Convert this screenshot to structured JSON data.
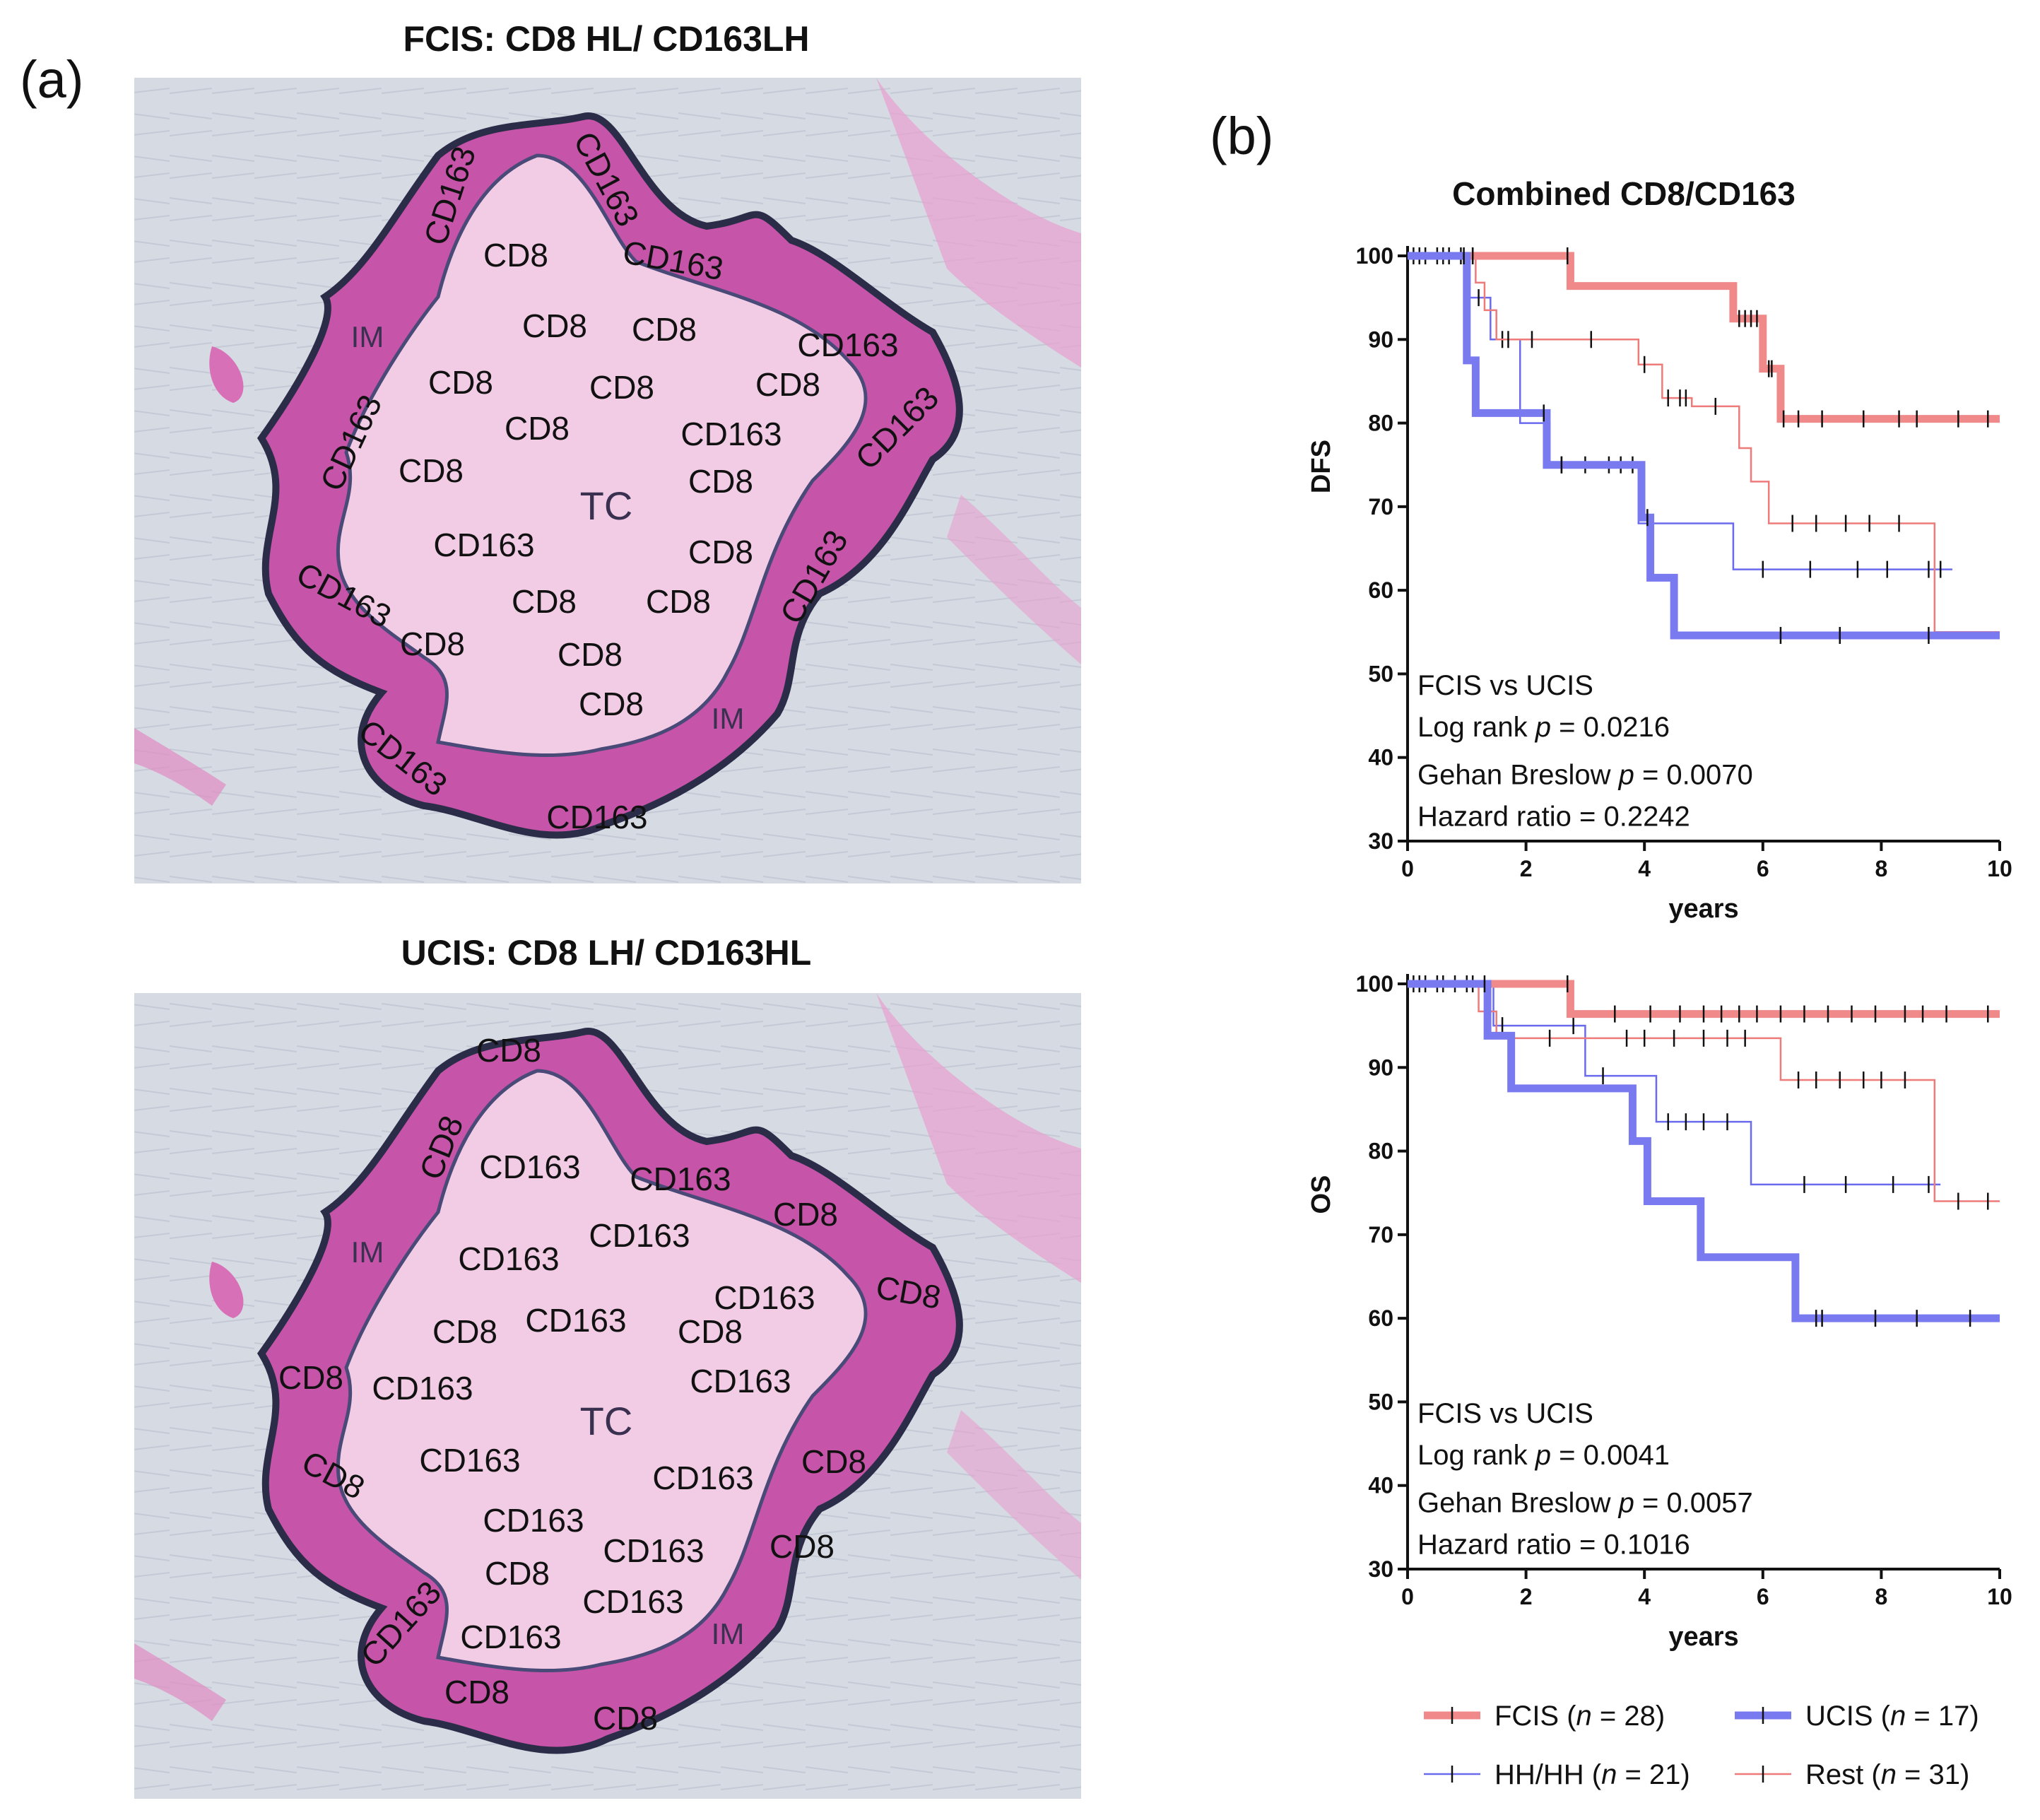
{
  "panel_a": {
    "letter": "(a)",
    "top": {
      "title": "FCIS: CD8 HL/ CD163LH",
      "center_label": "TC",
      "labels": [
        {
          "t": "CD163",
          "kind": "rim"
        },
        {
          "t": "CD163",
          "kind": "rim"
        },
        {
          "t": "CD163",
          "kind": "rim"
        },
        {
          "t": "CD8",
          "kind": "rim"
        },
        {
          "t": "CD163",
          "kind": "rim"
        },
        {
          "t": "CD163",
          "kind": "rim"
        },
        {
          "t": "CD163",
          "kind": "rim"
        },
        {
          "t": "CD163",
          "kind": "rim"
        },
        {
          "t": "CD163",
          "kind": "rim"
        },
        {
          "t": "CD163",
          "kind": "rim"
        },
        {
          "t": "CD163",
          "kind": "rim"
        },
        {
          "t": "CD8",
          "kind": "rim"
        },
        {
          "t": "IM",
          "kind": "im"
        },
        {
          "t": "IM",
          "kind": "im"
        },
        {
          "t": "CD8",
          "kind": "core"
        },
        {
          "t": "CD8",
          "kind": "core"
        },
        {
          "t": "CD8",
          "kind": "core"
        },
        {
          "t": "CD8",
          "kind": "core"
        },
        {
          "t": "CD8",
          "kind": "core"
        },
        {
          "t": "CD8",
          "kind": "core"
        },
        {
          "t": "CD8",
          "kind": "core"
        },
        {
          "t": "CD163",
          "kind": "core"
        },
        {
          "t": "CD8",
          "kind": "core"
        },
        {
          "t": "CD8",
          "kind": "core"
        },
        {
          "t": "CD163",
          "kind": "core"
        },
        {
          "t": "CD8",
          "kind": "core"
        },
        {
          "t": "CD8",
          "kind": "core"
        },
        {
          "t": "CD8",
          "kind": "core"
        },
        {
          "t": "CD8",
          "kind": "core"
        },
        {
          "t": "CD8",
          "kind": "core"
        }
      ]
    },
    "bottom": {
      "title": "UCIS: CD8 LH/ CD163HL",
      "center_label": "TC",
      "labels": [
        {
          "t": "CD8",
          "kind": "rim"
        },
        {
          "t": "CD8",
          "kind": "rim"
        },
        {
          "t": "CD163",
          "kind": "rim"
        },
        {
          "t": "CD8",
          "kind": "rim"
        },
        {
          "t": "CD8",
          "kind": "rim"
        },
        {
          "t": "CD8",
          "kind": "rim"
        },
        {
          "t": "CD8",
          "kind": "rim"
        },
        {
          "t": "CD8",
          "kind": "rim"
        },
        {
          "t": "CD8",
          "kind": "rim"
        },
        {
          "t": "CD163",
          "kind": "rim"
        },
        {
          "t": "CD8",
          "kind": "rim"
        },
        {
          "t": "CD8",
          "kind": "rim"
        },
        {
          "t": "IM",
          "kind": "im"
        },
        {
          "t": "IM",
          "kind": "im"
        },
        {
          "t": "CD163",
          "kind": "core"
        },
        {
          "t": "CD163",
          "kind": "core"
        },
        {
          "t": "CD163",
          "kind": "core"
        },
        {
          "t": "CD163",
          "kind": "core"
        },
        {
          "t": "CD8",
          "kind": "core"
        },
        {
          "t": "CD163",
          "kind": "core"
        },
        {
          "t": "CD8",
          "kind": "core"
        },
        {
          "t": "CD163",
          "kind": "core"
        },
        {
          "t": "CD163",
          "kind": "core"
        },
        {
          "t": "CD163",
          "kind": "core"
        },
        {
          "t": "CD163",
          "kind": "core"
        },
        {
          "t": "CD163",
          "kind": "core"
        },
        {
          "t": "CD163",
          "kind": "core"
        },
        {
          "t": "CD8",
          "kind": "core"
        },
        {
          "t": "CD163",
          "kind": "core"
        },
        {
          "t": "CD163",
          "kind": "core"
        }
      ]
    }
  },
  "panel_b": {
    "letter": "(b)",
    "title": "Combined CD8/CD163"
  },
  "colors": {
    "FCIS": "#f08a8a",
    "UCIS": "#7a7af0",
    "HH": "#6a6aee",
    "Rest": "#ee7a7a",
    "tissue_outer": "#c64aa4",
    "tissue_inner": "#f3c6e3",
    "background": "#d7dbe3",
    "outline": "#2e3050",
    "censor": "#111111"
  },
  "chart_data": [
    {
      "type": "line",
      "subtype": "kaplan-meier",
      "title": "Combined CD8/CD163",
      "xlabel": "years",
      "ylabel": "DFS",
      "xlim": [
        0,
        10
      ],
      "ylim": [
        30,
        100
      ],
      "xticks": [
        0,
        2,
        4,
        6,
        8,
        10
      ],
      "yticks": [
        30,
        40,
        50,
        60,
        70,
        80,
        90,
        100
      ],
      "stats": [
        "FCIS vs UCIS",
        "Log rank",
        "= 0.0216",
        "Gehan Breslow",
        "= 0.0070",
        "Hazard ratio = 0.2242"
      ],
      "series": [
        {
          "name": "HH/HH",
          "color_key": "HH",
          "width": 2.5,
          "steps": [
            [
              0,
              100
            ],
            [
              1.05,
              95
            ],
            [
              1.4,
              90
            ],
            [
              1.9,
              80
            ],
            [
              2.4,
              75
            ],
            [
              3.9,
              75
            ],
            [
              3.9,
              68
            ],
            [
              5.5,
              68
            ],
            [
              5.5,
              62.5
            ],
            [
              9.2,
              62.5
            ]
          ],
          "censors": [
            0.1,
            0.3,
            0.5,
            0.7,
            1.2,
            1.6,
            2.6,
            3.0,
            3.4,
            3.6,
            3.8,
            6.0,
            6.8,
            7.6,
            8.1,
            8.8,
            9.0
          ]
        },
        {
          "name": "Rest",
          "color_key": "Rest",
          "width": 2.5,
          "steps": [
            [
              0,
              100
            ],
            [
              1.15,
              96.8
            ],
            [
              1.3,
              93.5
            ],
            [
              1.5,
              90
            ],
            [
              3.9,
              90
            ],
            [
              3.9,
              87
            ],
            [
              4.3,
              83
            ],
            [
              4.8,
              83
            ],
            [
              4.8,
              82
            ],
            [
              5.6,
              82
            ],
            [
              5.6,
              77
            ],
            [
              5.8,
              73
            ],
            [
              6.1,
              73
            ],
            [
              6.1,
              68
            ],
            [
              8.9,
              68
            ],
            [
              8.9,
              55
            ],
            [
              10,
              55
            ]
          ],
          "censors": [
            0.2,
            0.6,
            0.9,
            1.1,
            1.7,
            2.1,
            3.1,
            4.0,
            4.4,
            4.6,
            4.7,
            5.2,
            6.5,
            6.9,
            7.4,
            7.8,
            8.3
          ]
        },
        {
          "name": "FCIS",
          "color_key": "FCIS",
          "width": 11,
          "steps": [
            [
              0,
              100
            ],
            [
              2.75,
              100
            ],
            [
              2.75,
              96.4
            ],
            [
              5.5,
              96.4
            ],
            [
              5.5,
              92.5
            ],
            [
              6.0,
              92.5
            ],
            [
              6.0,
              86.5
            ],
            [
              6.3,
              86.5
            ],
            [
              6.3,
              80.5
            ],
            [
              10,
              80.5
            ]
          ],
          "censors": [
            1.1,
            2.7,
            5.6,
            5.7,
            5.8,
            5.9,
            6.1,
            6.15,
            6.35,
            6.6,
            7.0,
            7.7,
            8.3,
            8.6,
            9.3,
            9.8
          ]
        },
        {
          "name": "UCIS",
          "color_key": "UCIS",
          "width": 11,
          "steps": [
            [
              0,
              100
            ],
            [
              1.0,
              100
            ],
            [
              1.0,
              87.5
            ],
            [
              1.15,
              87.5
            ],
            [
              1.15,
              81.2
            ],
            [
              2.35,
              81.2
            ],
            [
              2.35,
              75
            ],
            [
              3.95,
              75
            ],
            [
              3.95,
              68.7
            ],
            [
              4.1,
              68.7
            ],
            [
              4.1,
              61.5
            ],
            [
              4.5,
              61.5
            ],
            [
              4.5,
              54.6
            ],
            [
              10,
              54.6
            ]
          ],
          "censors": [
            0.95,
            2.3,
            2.6,
            4.05,
            6.3,
            7.3,
            8.8
          ]
        }
      ]
    },
    {
      "type": "line",
      "subtype": "kaplan-meier",
      "xlabel": "years",
      "ylabel": "OS",
      "xlim": [
        0,
        10
      ],
      "ylim": [
        30,
        100
      ],
      "xticks": [
        0,
        2,
        4,
        6,
        8,
        10
      ],
      "yticks": [
        30,
        40,
        50,
        60,
        70,
        80,
        90,
        100
      ],
      "stats": [
        "FCIS vs UCIS",
        "Log rank",
        "= 0.0041",
        "Gehan Breslow",
        "= 0.0057",
        "Hazard ratio = 0.1016"
      ],
      "series": [
        {
          "name": "HH/HH",
          "color_key": "HH",
          "width": 2.5,
          "steps": [
            [
              0,
              100
            ],
            [
              1.45,
              95
            ],
            [
              1.9,
              95
            ],
            [
              3.0,
              89
            ],
            [
              3.5,
              89
            ],
            [
              4.2,
              83.5
            ],
            [
              5.8,
              83.5
            ],
            [
              5.8,
              76
            ],
            [
              9.0,
              76
            ]
          ],
          "censors": [
            0.1,
            0.3,
            0.5,
            0.8,
            1.6,
            2.8,
            3.3,
            4.4,
            4.7,
            5.0,
            5.4,
            6.7,
            7.4,
            8.2,
            8.8
          ]
        },
        {
          "name": "Rest",
          "color_key": "Rest",
          "width": 2.5,
          "steps": [
            [
              0,
              100
            ],
            [
              1.2,
              96.7
            ],
            [
              1.5,
              93.5
            ],
            [
              6.3,
              93.5
            ],
            [
              6.3,
              88.5
            ],
            [
              8.9,
              88.5
            ],
            [
              8.9,
              74
            ],
            [
              10,
              74
            ]
          ],
          "censors": [
            0.2,
            0.6,
            1.0,
            2.4,
            3.7,
            4.0,
            4.5,
            5.0,
            5.4,
            5.7,
            6.6,
            6.9,
            7.3,
            7.7,
            8.0,
            8.4,
            9.3,
            9.8
          ]
        },
        {
          "name": "FCIS",
          "color_key": "FCIS",
          "width": 11,
          "steps": [
            [
              0,
              100
            ],
            [
              2.75,
              100
            ],
            [
              2.75,
              96.4
            ],
            [
              10,
              96.4
            ]
          ],
          "censors": [
            1.1,
            2.7,
            3.5,
            4.1,
            4.6,
            5.0,
            5.3,
            5.6,
            5.9,
            6.3,
            6.7,
            7.1,
            7.5,
            7.9,
            8.4,
            8.7,
            9.1,
            9.8
          ]
        },
        {
          "name": "UCIS",
          "color_key": "UCIS",
          "width": 11,
          "steps": [
            [
              0,
              100
            ],
            [
              1.35,
              100
            ],
            [
              1.35,
              93.8
            ],
            [
              1.75,
              93.8
            ],
            [
              1.75,
              87.5
            ],
            [
              3.8,
              87.5
            ],
            [
              3.8,
              81.2
            ],
            [
              4.05,
              81.2
            ],
            [
              4.05,
              74
            ],
            [
              4.95,
              74
            ],
            [
              4.95,
              67.3
            ],
            [
              6.55,
              67.3
            ],
            [
              6.55,
              60
            ],
            [
              10,
              60
            ]
          ],
          "censors": [
            1.3,
            6.9,
            7.0,
            7.9,
            8.6,
            9.5
          ]
        }
      ]
    }
  ],
  "legend": [
    {
      "name": "FCIS",
      "n": "= 28)",
      "color_key": "FCIS",
      "width": 11
    },
    {
      "name": "UCIS",
      "n": "= 17)",
      "color_key": "UCIS",
      "width": 11
    },
    {
      "name": "HH/HH",
      "n": "= 21)",
      "color_key": "HH",
      "width": 2.5
    },
    {
      "name": "Rest",
      "n": "= 31)",
      "color_key": "Rest",
      "width": 2.5
    }
  ],
  "legend_n_symbol": "n"
}
